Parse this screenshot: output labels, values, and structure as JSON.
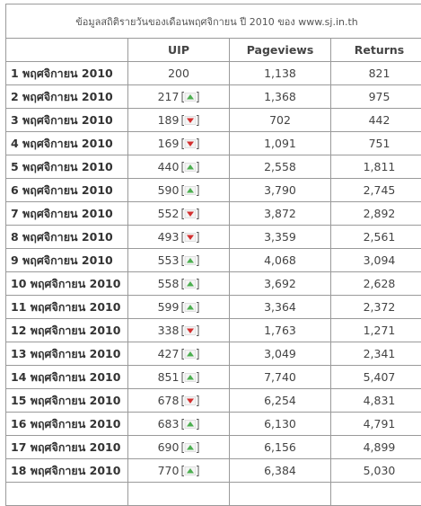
{
  "table": {
    "title": "ข้อมูลสถิติรายวันของเดือนพฤศจิกายน ปี 2010 ของ www.sj.in.th",
    "header": [
      "",
      "UIP",
      "Pageviews",
      "Returns"
    ],
    "rows": [
      {
        "date": "1 พฤศจิกายน 2010",
        "uip": "200",
        "trend": null,
        "pageviews": "1,138",
        "returns": "821"
      },
      {
        "date": "2 พฤศจิกายน 2010",
        "uip": "217",
        "trend": "up",
        "pageviews": "1,368",
        "returns": "975"
      },
      {
        "date": "3 พฤศจิกายน 2010",
        "uip": "189",
        "trend": "down",
        "pageviews": "702",
        "returns": "442"
      },
      {
        "date": "4 พฤศจิกายน 2010",
        "uip": "169",
        "trend": "down",
        "pageviews": "1,091",
        "returns": "751"
      },
      {
        "date": "5 พฤศจิกายน 2010",
        "uip": "440",
        "trend": "up",
        "pageviews": "2,558",
        "returns": "1,811"
      },
      {
        "date": "6 พฤศจิกายน 2010",
        "uip": "590",
        "trend": "up",
        "pageviews": "3,790",
        "returns": "2,745"
      },
      {
        "date": "7 พฤศจิกายน 2010",
        "uip": "552",
        "trend": "down",
        "pageviews": "3,872",
        "returns": "2,892"
      },
      {
        "date": "8 พฤศจิกายน 2010",
        "uip": "493",
        "trend": "down",
        "pageviews": "3,359",
        "returns": "2,561"
      },
      {
        "date": "9 พฤศจิกายน 2010",
        "uip": "553",
        "trend": "up",
        "pageviews": "4,068",
        "returns": "3,094"
      },
      {
        "date": "10 พฤศจิกายน 2010",
        "uip": "558",
        "trend": "up",
        "pageviews": "3,692",
        "returns": "2,628"
      },
      {
        "date": "11 พฤศจิกายน 2010",
        "uip": "599",
        "trend": "up",
        "pageviews": "3,364",
        "returns": "2,372"
      },
      {
        "date": "12 พฤศจิกายน 2010",
        "uip": "338",
        "trend": "down",
        "pageviews": "1,763",
        "returns": "1,271"
      },
      {
        "date": "13 พฤศจิกายน 2010",
        "uip": "427",
        "trend": "up",
        "pageviews": "3,049",
        "returns": "2,341"
      },
      {
        "date": "14 พฤศจิกายน 2010",
        "uip": "851",
        "trend": "up",
        "pageviews": "7,740",
        "returns": "5,407"
      },
      {
        "date": "15 พฤศจิกายน 2010",
        "uip": "678",
        "trend": "down",
        "pageviews": "6,254",
        "returns": "4,831"
      },
      {
        "date": "16 พฤศจิกายน 2010",
        "uip": "683",
        "trend": "up",
        "pageviews": "6,130",
        "returns": "4,791"
      },
      {
        "date": "17 พฤศจิกายน 2010",
        "uip": "690",
        "trend": "up",
        "pageviews": "6,156",
        "returns": "4,899"
      },
      {
        "date": "18 พฤศจิกายน 2010",
        "uip": "770",
        "trend": "up",
        "pageviews": "6,384",
        "returns": "5,030"
      }
    ]
  }
}
